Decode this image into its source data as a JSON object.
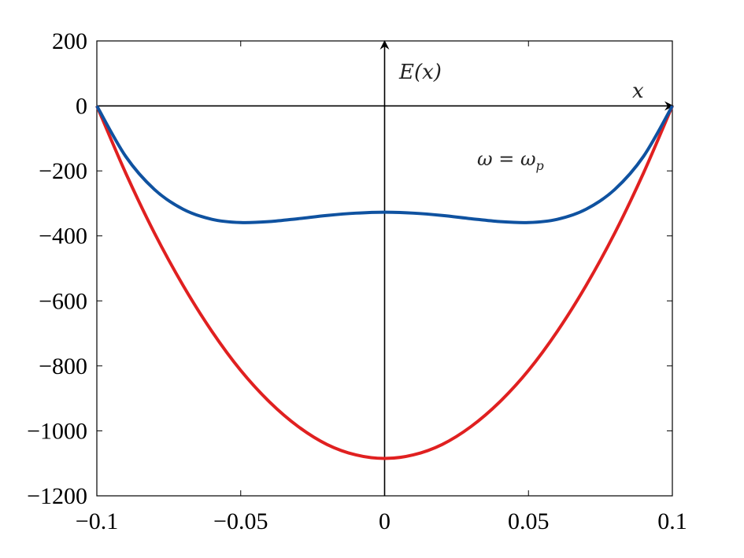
{
  "chart_data": {
    "type": "line",
    "title": "",
    "xlabel": "",
    "ylabel": "",
    "xlim": [
      -0.1,
      0.1
    ],
    "ylim": [
      -1200,
      200
    ],
    "xticks": [
      -0.1,
      -0.05,
      0,
      0.05,
      0.1
    ],
    "xtick_labels": [
      "−0.1",
      "−0.05",
      "0",
      "0.05",
      "0.1"
    ],
    "yticks": [
      200,
      0,
      -200,
      -400,
      -600,
      -800,
      -1000,
      -1200
    ],
    "ytick_labels": [
      "200",
      "0",
      "−200",
      "−400",
      "−600",
      "−800",
      "−1000",
      "−1200"
    ],
    "grid": false,
    "annotations": {
      "y_axis_label": "E(x)",
      "x_axis_label": "x",
      "condition": "ω = ω",
      "condition_subscript": "p"
    },
    "x": [
      -0.1,
      -0.09,
      -0.08,
      -0.07,
      -0.06,
      -0.05,
      -0.04,
      -0.03,
      -0.02,
      -0.01,
      0,
      0.01,
      0.02,
      0.03,
      0.04,
      0.05,
      0.06,
      0.07,
      0.08,
      0.09,
      0.1
    ],
    "series": [
      {
        "color": "#e02020",
        "values": [
          0,
          -206,
          -391,
          -553,
          -694,
          -814,
          -911,
          -987,
          -1042,
          -1074,
          -1085,
          -1074,
          -1042,
          -987,
          -911,
          -814,
          -694,
          -553,
          -391,
          -206,
          0
        ]
      },
      {
        "color": "#0f52a0",
        "values": [
          0,
          -155,
          -257,
          -318,
          -349,
          -359,
          -356,
          -347,
          -337,
          -330,
          -327,
          -330,
          -337,
          -347,
          -356,
          -359,
          -349,
          -318,
          -257,
          -155,
          0
        ]
      }
    ]
  }
}
